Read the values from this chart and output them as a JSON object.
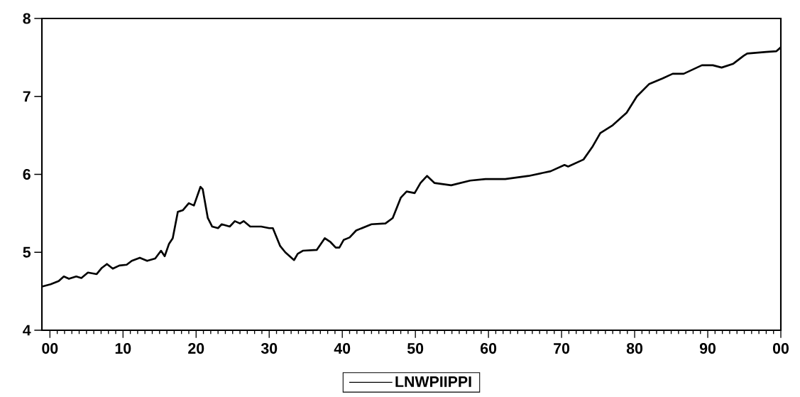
{
  "chart_data": {
    "type": "line",
    "x": [
      1898.9,
      1900.1,
      1901.2,
      1901.9,
      1902.6,
      1903.6,
      1904.3,
      1905.2,
      1906.4,
      1907.1,
      1907.8,
      1908.6,
      1909.5,
      1910.5,
      1911.2,
      1912.3,
      1913.3,
      1914.4,
      1915.2,
      1915.7,
      1916.3,
      1916.8,
      1917.5,
      1918.2,
      1919.0,
      1919.7,
      1920.6,
      1920.9,
      1921.6,
      1922.2,
      1923.0,
      1923.5,
      1924.6,
      1925.3,
      1926.0,
      1926.5,
      1927.4,
      1928.9,
      1930.0,
      1930.5,
      1931.5,
      1932.2,
      1933.4,
      1933.9,
      1934.6,
      1936.5,
      1937.6,
      1938.4,
      1939.1,
      1939.6,
      1940.2,
      1941.0,
      1941.9,
      1944.0,
      1945.9,
      1946.9,
      1948.0,
      1948.8,
      1949.9,
      1950.7,
      1951.6,
      1952.6,
      1954.9,
      1957.5,
      1959.6,
      1962.3,
      1965.5,
      1968.5,
      1970.4,
      1970.9,
      1973.0,
      1974.2,
      1975.3,
      1977.0,
      1978.9,
      1980.3,
      1982.0,
      1983.8,
      1985.2,
      1986.7,
      1989.2,
      1990.7,
      1991.9,
      1993.5,
      1994.9,
      1995.4,
      1998.0,
      1999.4,
      2000.0
    ],
    "series": [
      {
        "name": "LNWPIIPPI",
        "color": "#000000",
        "values": [
          4.56,
          4.59,
          4.63,
          4.69,
          4.66,
          4.69,
          4.67,
          4.74,
          4.72,
          4.8,
          4.85,
          4.79,
          4.83,
          4.84,
          4.89,
          4.93,
          4.89,
          4.92,
          5.02,
          4.95,
          5.11,
          5.18,
          5.52,
          5.54,
          5.63,
          5.6,
          5.84,
          5.81,
          5.44,
          5.33,
          5.31,
          5.36,
          5.33,
          5.4,
          5.37,
          5.4,
          5.33,
          5.33,
          5.31,
          5.31,
          5.08,
          5.0,
          4.9,
          4.98,
          5.02,
          5.03,
          5.18,
          5.13,
          5.06,
          5.06,
          5.16,
          5.19,
          5.28,
          5.36,
          5.37,
          5.44,
          5.7,
          5.78,
          5.76,
          5.89,
          5.98,
          5.89,
          5.86,
          5.92,
          5.94,
          5.94,
          5.98,
          6.04,
          6.12,
          6.1,
          6.19,
          6.35,
          6.53,
          6.63,
          6.79,
          7.0,
          7.16,
          7.23,
          7.29,
          7.29,
          7.4,
          7.4,
          7.37,
          7.42,
          7.52,
          7.55,
          7.57,
          7.58,
          7.63
        ]
      }
    ],
    "xlim": [
      1898.9,
      2000
    ],
    "xticks": [
      {
        "value": 1900,
        "label": "00"
      },
      {
        "value": 1910,
        "label": "10"
      },
      {
        "value": 1920,
        "label": "20"
      },
      {
        "value": 1930,
        "label": "30"
      },
      {
        "value": 1940,
        "label": "40"
      },
      {
        "value": 1950,
        "label": "50"
      },
      {
        "value": 1960,
        "label": "60"
      },
      {
        "value": 1970,
        "label": "70"
      },
      {
        "value": 1980,
        "label": "80"
      },
      {
        "value": 1990,
        "label": "90"
      },
      {
        "value": 2000,
        "label": "00"
      }
    ],
    "ylim": [
      4,
      8
    ],
    "yticks": [
      4,
      5,
      6,
      7,
      8
    ],
    "legend": "bottom",
    "grid": false,
    "line_style": "solid"
  }
}
